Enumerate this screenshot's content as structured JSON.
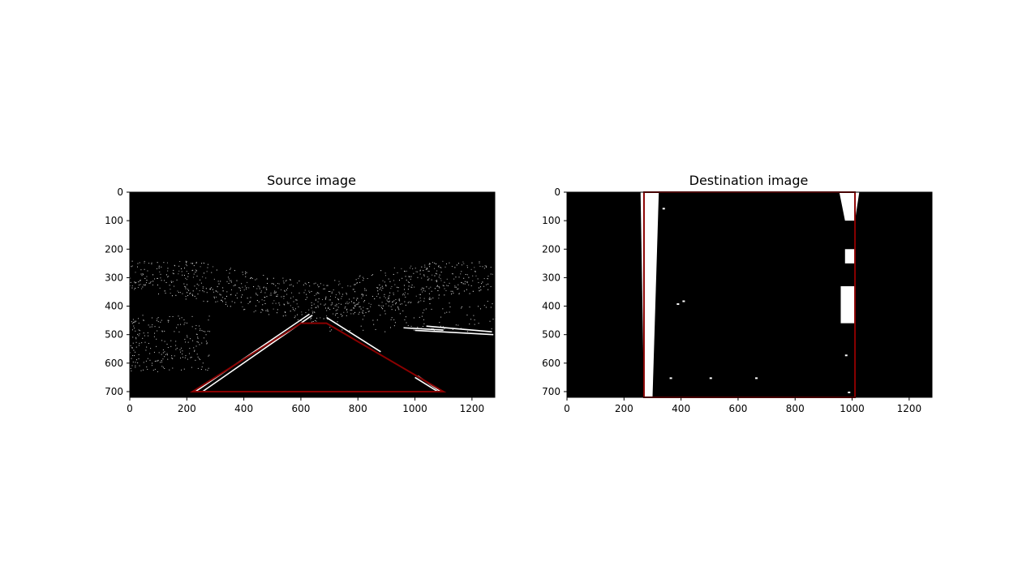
{
  "chart_data": [
    {
      "type": "image",
      "title": "Source image",
      "xlim": [
        0,
        1280
      ],
      "ylim": [
        720,
        0
      ],
      "xticks": [
        0,
        200,
        400,
        600,
        800,
        1000,
        1200
      ],
      "yticks": [
        0,
        100,
        200,
        300,
        400,
        500,
        600,
        700
      ],
      "xtick_labels": [
        "0",
        "200",
        "400",
        "600",
        "800",
        "1000",
        "1200"
      ],
      "ytick_labels": [
        "0",
        "100",
        "200",
        "300",
        "400",
        "500",
        "600",
        "700"
      ],
      "overlay": {
        "shape": "polygon",
        "color": "#8b0000",
        "points": [
          [
            220,
            700
          ],
          [
            1100,
            700
          ],
          [
            690,
            460
          ],
          [
            600,
            460
          ]
        ]
      },
      "lane_markings": [
        {
          "x": [
            230,
            630
          ],
          "y": [
            700,
            428
          ]
        },
        {
          "x": [
            255,
            640
          ],
          "y": [
            700,
            432
          ]
        },
        {
          "x": [
            690,
            880
          ],
          "y": [
            440,
            560
          ]
        },
        {
          "x": [
            1010,
            1090
          ],
          "y": [
            645,
            700
          ]
        },
        {
          "x": [
            1000,
            1080
          ],
          "y": [
            650,
            700
          ]
        },
        {
          "x": [
            1000,
            1275
          ],
          "y": [
            485,
            500
          ]
        },
        {
          "x": [
            960,
            1100
          ],
          "y": [
            476,
            484
          ]
        },
        {
          "x": [
            1040,
            1270
          ],
          "y": [
            470,
            490
          ]
        }
      ]
    },
    {
      "type": "image",
      "title": "Destination image",
      "xlim": [
        0,
        1280
      ],
      "ylim": [
        720,
        0
      ],
      "xticks": [
        0,
        200,
        400,
        600,
        800,
        1000,
        1200
      ],
      "yticks": [
        0,
        100,
        200,
        300,
        400,
        500,
        600,
        700
      ],
      "xtick_labels": [
        "0",
        "200",
        "400",
        "600",
        "800",
        "1000",
        "1200"
      ],
      "ytick_labels": [
        "0",
        "100",
        "200",
        "300",
        "400",
        "500",
        "600",
        "700"
      ],
      "overlay": {
        "shape": "polygon",
        "color": "#8b0000",
        "points": [
          [
            270,
            720
          ],
          [
            1010,
            720
          ],
          [
            1010,
            0
          ],
          [
            270,
            0
          ]
        ]
      },
      "lane_bands": [
        {
          "top_x": [
            258,
            322
          ],
          "bottom_x": [
            270,
            300
          ],
          "y": [
            0,
            720
          ]
        },
        {
          "top_x": [
            955,
            1025
          ],
          "bottom_x": [
            975,
            1010
          ],
          "y": [
            0,
            100
          ]
        },
        {
          "top_x": [
            960,
            1010
          ],
          "bottom_x": [
            960,
            1010
          ],
          "y": [
            330,
            460
          ]
        },
        {
          "top_x": [
            975,
            1010
          ],
          "bottom_x": [
            975,
            1010
          ],
          "y": [
            200,
            250
          ]
        }
      ]
    }
  ]
}
